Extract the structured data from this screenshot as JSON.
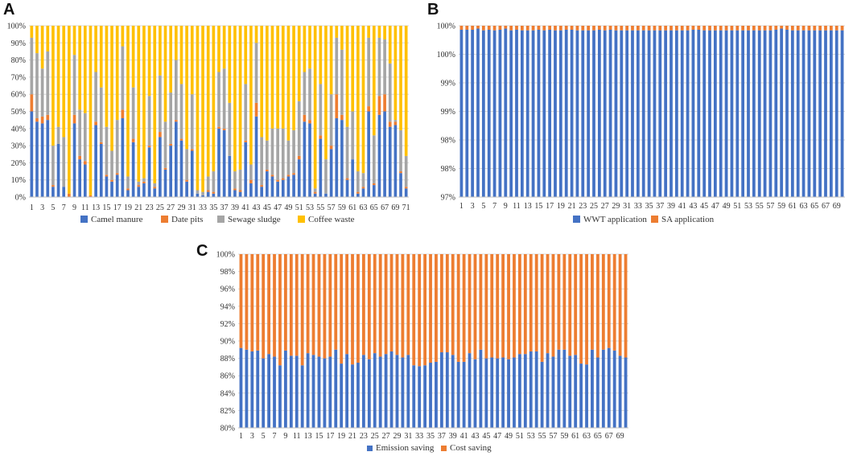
{
  "panels": [
    {
      "letter": "A",
      "chart_data": {
        "type": "bar",
        "stacked": "percent",
        "n": 71,
        "x_tick_labels": [
          "1",
          "3",
          "5",
          "7",
          "9",
          "11",
          "13",
          "15",
          "17",
          "19",
          "21",
          "23",
          "25",
          "27",
          "29",
          "31",
          "33",
          "35",
          "37",
          "39",
          "41",
          "43",
          "45",
          "47",
          "49",
          "51",
          "53",
          "55",
          "57",
          "59",
          "61",
          "63",
          "65",
          "67",
          "69",
          "71"
        ],
        "ylim": [
          0,
          100
        ],
        "y_ticks": [
          "0%",
          "10%",
          "20%",
          "30%",
          "40%",
          "50%",
          "60%",
          "70%",
          "80%",
          "90%",
          "100%"
        ],
        "legend": [
          "Camel manure",
          "Date pits",
          "Sewage sludge",
          "Coffee waste"
        ],
        "colors": [
          "#4472C4",
          "#ED7D31",
          "#A5A5A5",
          "#FFC000"
        ],
        "series": [
          {
            "name": "Camel manure",
            "values": [
              50,
              44,
              43,
              45,
              6,
              31,
              6,
              0,
              43,
              22,
              19,
              0,
              42,
              31,
              12,
              9,
              13,
              46,
              4,
              32,
              6,
              8,
              29,
              5,
              35,
              16,
              30,
              44,
              33,
              9,
              27,
              2,
              1,
              3,
              2,
              40,
              39,
              24,
              4,
              3,
              32,
              8,
              47,
              6,
              15,
              12,
              9,
              10,
              12,
              13,
              22,
              44,
              43,
              2,
              34,
              2,
              28,
              46,
              45,
              10,
              22,
              2,
              5,
              50,
              7,
              48,
              50,
              41,
              42,
              14,
              5
            ]
          },
          {
            "name": "Date pits",
            "values": [
              10,
              2,
              4,
              3,
              1,
              0,
              0,
              2,
              5,
              2,
              2,
              1,
              2,
              1,
              1,
              1,
              1,
              5,
              1,
              2,
              1,
              1,
              1,
              1,
              3,
              1,
              1,
              1,
              1,
              1,
              1,
              0,
              0,
              1,
              1,
              1,
              1,
              0,
              1,
              1,
              1,
              2,
              8,
              1,
              1,
              1,
              1,
              1,
              1,
              1,
              2,
              4,
              2,
              1,
              2,
              0,
              2,
              14,
              3,
              1,
              0,
              1,
              1,
              3,
              1,
              11,
              10,
              3,
              2,
              1,
              1
            ]
          },
          {
            "name": "Sewage sludge",
            "values": [
              33,
              38,
              28,
              37,
              23,
              10,
              29,
              0,
              35,
              27,
              28,
              0,
              29,
              32,
              28,
              17,
              31,
              37,
              7,
              30,
              2,
              2,
              29,
              2,
              33,
              27,
              30,
              35,
              32,
              18,
              32,
              2,
              2,
              8,
              12,
              32,
              35,
              31,
              10,
              12,
              33,
              9,
              35,
              28,
              17,
              27,
              30,
              29,
              20,
              25,
              32,
              25,
              30,
              2,
              30,
              20,
              30,
              33,
              38,
              30,
              28,
              12,
              8,
              40,
              28,
              34,
              32,
              34,
              1,
              24,
              18
            ]
          },
          {
            "name": "Coffee waste",
            "values": [
              7,
              16,
              25,
              15,
              70,
              59,
              65,
              98,
              17,
              49,
              51,
              99,
              27,
              36,
              59,
              73,
              55,
              12,
              88,
              36,
              91,
              89,
              41,
              92,
              29,
              56,
              39,
              20,
              34,
              72,
              40,
              96,
              97,
              88,
              85,
              27,
              25,
              45,
              85,
              84,
              34,
              81,
              10,
              65,
              67,
              60,
              60,
              60,
              67,
              61,
              44,
              27,
              25,
              95,
              34,
              78,
              40,
              7,
              14,
              59,
              50,
              85,
              86,
              7,
              64,
              7,
              8,
              22,
              55,
              61,
              76
            ]
          }
        ]
      }
    },
    {
      "letter": "B",
      "chart_data": {
        "type": "bar",
        "stacked": "percent",
        "n": 70,
        "x_tick_labels": [
          "1",
          "3",
          "5",
          "7",
          "9",
          "11",
          "13",
          "15",
          "17",
          "19",
          "21",
          "23",
          "25",
          "27",
          "29",
          "31",
          "33",
          "35",
          "37",
          "39",
          "41",
          "43",
          "45",
          "47",
          "49",
          "51",
          "53",
          "55",
          "57",
          "59",
          "61",
          "63",
          "65",
          "67",
          "69"
        ],
        "ylim": [
          97,
          100
        ],
        "y_ticks": [
          "97%",
          "98%",
          "98%",
          "99%",
          "99%",
          "100%",
          "100%"
        ],
        "legend": [
          "WWT application",
          "SA application"
        ],
        "colors": [
          "#4472C4",
          "#ED7D31"
        ],
        "series": [
          {
            "name": "WWT application",
            "values": [
              99.93,
              99.93,
              99.93,
              99.95,
              99.92,
              99.93,
              99.92,
              99.93,
              99.95,
              99.92,
              99.93,
              99.92,
              99.92,
              99.92,
              99.93,
              99.92,
              99.93,
              99.92,
              99.92,
              99.93,
              99.93,
              99.92,
              99.92,
              99.92,
              99.92,
              99.93,
              99.92,
              99.93,
              99.92,
              99.92,
              99.92,
              99.92,
              99.92,
              99.92,
              99.92,
              99.92,
              99.92,
              99.92,
              99.92,
              99.92,
              99.92,
              99.92,
              99.93,
              99.93,
              99.92,
              99.92,
              99.92,
              99.92,
              99.92,
              99.92,
              99.92,
              99.92,
              99.92,
              99.92,
              99.92,
              99.92,
              99.92,
              99.93,
              99.95,
              99.93,
              99.92,
              99.92,
              99.92,
              99.92,
              99.92,
              99.92,
              99.92,
              99.92,
              99.92,
              99.92
            ]
          },
          {
            "name": "SA application",
            "values": [
              0.07,
              0.07,
              0.07,
              0.05,
              0.08,
              0.07,
              0.08,
              0.07,
              0.05,
              0.08,
              0.07,
              0.08,
              0.08,
              0.08,
              0.07,
              0.08,
              0.07,
              0.08,
              0.08,
              0.07,
              0.07,
              0.08,
              0.08,
              0.08,
              0.08,
              0.07,
              0.08,
              0.07,
              0.08,
              0.08,
              0.08,
              0.08,
              0.08,
              0.08,
              0.08,
              0.08,
              0.08,
              0.08,
              0.08,
              0.08,
              0.08,
              0.08,
              0.07,
              0.07,
              0.08,
              0.08,
              0.08,
              0.08,
              0.08,
              0.08,
              0.08,
              0.08,
              0.08,
              0.08,
              0.08,
              0.08,
              0.08,
              0.07,
              0.05,
              0.07,
              0.08,
              0.08,
              0.08,
              0.08,
              0.08,
              0.08,
              0.08,
              0.08,
              0.08,
              0.08
            ]
          }
        ]
      }
    },
    {
      "letter": "C",
      "chart_data": {
        "type": "bar",
        "stacked": "percent",
        "n": 70,
        "x_tick_labels": [
          "1",
          "3",
          "5",
          "7",
          "9",
          "11",
          "13",
          "15",
          "17",
          "19",
          "21",
          "23",
          "25",
          "27",
          "29",
          "31",
          "33",
          "35",
          "37",
          "39",
          "41",
          "43",
          "45",
          "47",
          "49",
          "51",
          "53",
          "55",
          "57",
          "59",
          "61",
          "63",
          "65",
          "67",
          "69"
        ],
        "ylim": [
          80,
          100
        ],
        "y_ticks": [
          "80%",
          "82%",
          "84%",
          "86%",
          "88%",
          "90%",
          "92%",
          "94%",
          "96%",
          "98%",
          "100%"
        ],
        "legend": [
          "Emission saving",
          "Cost saving"
        ],
        "colors": [
          "#4472C4",
          "#ED7D31"
        ],
        "series": [
          {
            "name": "Emission saving",
            "values": [
              89.2,
              89,
              88.8,
              88.9,
              88,
              88.5,
              88.2,
              87.2,
              88.9,
              88.3,
              88.3,
              87.2,
              88.6,
              88.4,
              88.2,
              88,
              88.2,
              89,
              87.4,
              88.5,
              87.3,
              87.5,
              88.4,
              87.9,
              88.6,
              88.2,
              88.5,
              88.8,
              88.4,
              88.1,
              88.4,
              87.2,
              87.1,
              87.2,
              87.5,
              87.6,
              88.7,
              88.7,
              88.4,
              87.6,
              87.6,
              88.6,
              87.9,
              89,
              88,
              88.1,
              88,
              88.1,
              87.9,
              88.1,
              88.5,
              88.5,
              88.8,
              88.8,
              87.6,
              88.6,
              88.2,
              89,
              89,
              88.3,
              88.4,
              87.4,
              87.3,
              89,
              88.1,
              89,
              89.2,
              88.9,
              88.3,
              88.1
            ]
          },
          {
            "name": "Cost saving",
            "values": [
              10.8,
              11,
              11.2,
              11.1,
              12,
              11.5,
              11.8,
              12.8,
              11.1,
              11.7,
              11.7,
              12.8,
              11.4,
              11.6,
              11.8,
              12,
              11.8,
              11,
              12.6,
              11.5,
              12.7,
              12.5,
              11.6,
              12.1,
              11.4,
              11.8,
              11.5,
              11.2,
              11.6,
              11.9,
              11.6,
              12.8,
              12.9,
              12.8,
              12.5,
              12.4,
              11.3,
              11.3,
              11.6,
              12.4,
              12.4,
              11.4,
              12.1,
              11,
              12,
              11.9,
              12,
              11.9,
              12.1,
              11.9,
              11.5,
              11.5,
              11.2,
              11.2,
              12.4,
              11.4,
              11.8,
              11,
              11,
              11.7,
              11.6,
              12.6,
              12.7,
              11,
              11.9,
              11,
              10.8,
              11.1,
              11.7,
              11.9
            ]
          }
        ]
      }
    }
  ]
}
